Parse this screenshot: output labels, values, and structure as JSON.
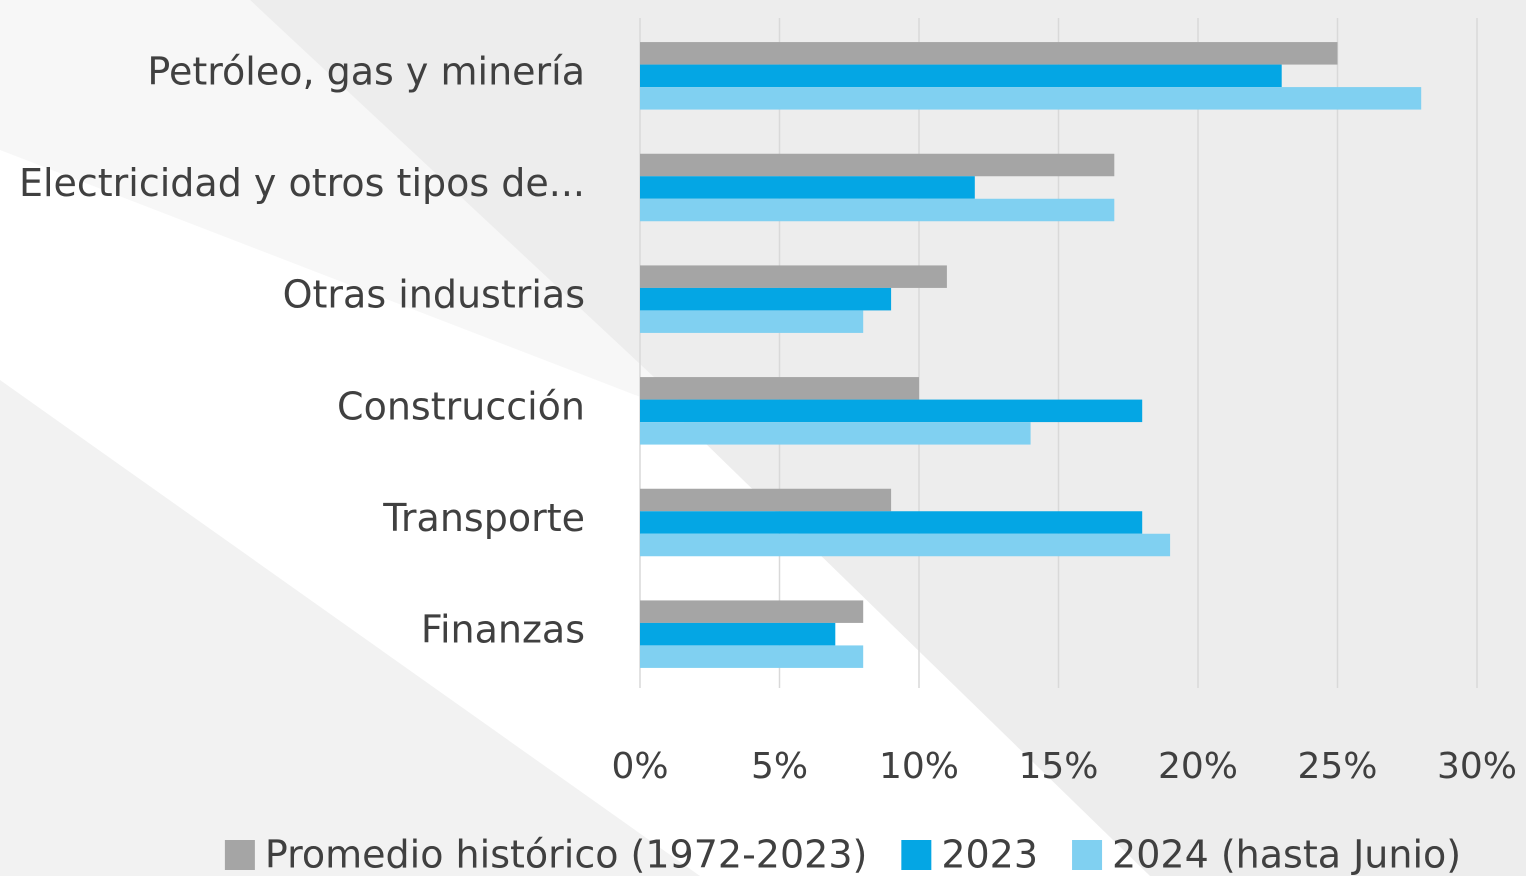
{
  "chart_data": {
    "type": "hbar",
    "categories": [
      "Petróleo, gas y minería",
      "Electricidad y otros tipos de...",
      "Otras industrias",
      "Construcción",
      "Transporte",
      "Finanzas"
    ],
    "series": [
      {
        "name": "Promedio histórico (1972-2023)",
        "color": "#a5a5a5",
        "values": [
          25,
          17,
          11,
          10,
          9,
          8
        ]
      },
      {
        "name": "2023",
        "color": "#04a6e4",
        "values": [
          23,
          12,
          9,
          18,
          18,
          7
        ]
      },
      {
        "name": "2024 (hasta Junio)",
        "color": "#80d0f1",
        "values": [
          28,
          17,
          8,
          14,
          19,
          8
        ]
      }
    ],
    "xlim": [
      0,
      30
    ],
    "xticks": [
      {
        "value": 0,
        "label": "0%"
      },
      {
        "value": 5,
        "label": "5%"
      },
      {
        "value": 10,
        "label": "10%"
      },
      {
        "value": 15,
        "label": "15%"
      },
      {
        "value": 20,
        "label": "20%"
      },
      {
        "value": 25,
        "label": "25%"
      },
      {
        "value": 30,
        "label": "30%"
      }
    ],
    "grid": true,
    "legend": "bottom"
  }
}
